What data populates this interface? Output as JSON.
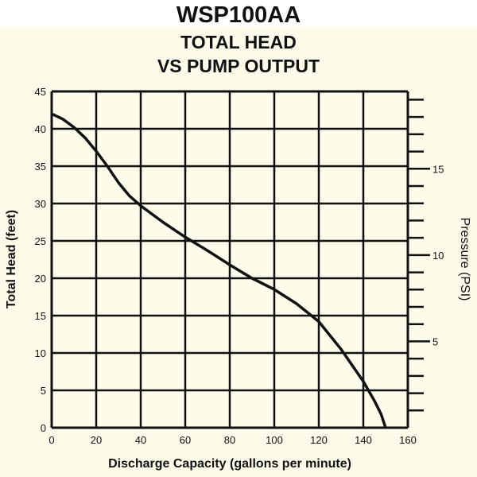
{
  "header": {
    "model": "WSP100AA"
  },
  "chart_data": {
    "type": "line",
    "title": "TOTAL HEAD VS PUMP OUTPUT",
    "title_lines": [
      "TOTAL HEAD",
      "VS PUMP OUTPUT"
    ],
    "xlabel": "Discharge Capacity (gallons per minute)",
    "ylabel": "Total Head (feet)",
    "y2label": "Pressure (PSI)",
    "xlim": [
      0,
      160
    ],
    "ylim": [
      0,
      45
    ],
    "y2lim": [
      0,
      19.5
    ],
    "x_ticks": [
      0,
      20,
      40,
      60,
      80,
      100,
      120,
      140,
      160
    ],
    "y_ticks": [
      0,
      5,
      10,
      15,
      20,
      25,
      30,
      35,
      40,
      45
    ],
    "y2_ticks": [
      5,
      10,
      15
    ],
    "y2_minor_max": 19,
    "grid": true,
    "series": [
      {
        "x": [
          0,
          5,
          10,
          15,
          20,
          25,
          30,
          35,
          40,
          50,
          60,
          70,
          80,
          90,
          100,
          110,
          120,
          130,
          140,
          145,
          148,
          150
        ],
        "y": [
          42,
          41.3,
          40.2,
          38.8,
          37,
          35,
          32.8,
          31,
          29.7,
          27.5,
          25.5,
          23.7,
          21.8,
          20,
          18.5,
          16.6,
          14.2,
          10.5,
          6.2,
          3.6,
          1.8,
          0
        ]
      }
    ],
    "colors": {
      "line": "#111111",
      "grid": "#111111",
      "background": "#fdfbe9"
    }
  }
}
